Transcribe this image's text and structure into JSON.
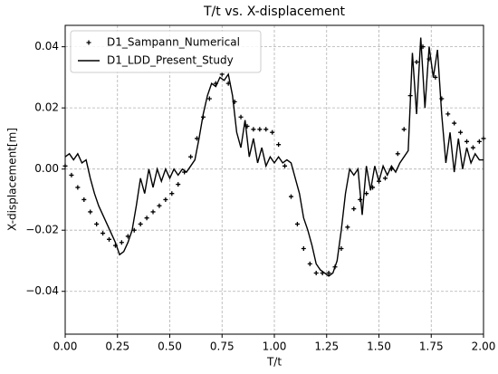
{
  "chart_data": {
    "type": "line",
    "title": "T/t vs. X-displacement",
    "x_label": "T/t",
    "y_label": "X-displacement[m]",
    "xlim": [
      0,
      2
    ],
    "ylim": [
      -0.054,
      0.047
    ],
    "xticks": [
      {
        "value": 0,
        "label": "0.00"
      },
      {
        "value": 0.25,
        "label": "0.25"
      },
      {
        "value": 0.5,
        "label": "0.50"
      },
      {
        "value": 0.75,
        "label": "0.75"
      },
      {
        "value": 1,
        "label": "1.00"
      },
      {
        "value": 1.25,
        "label": "1.25"
      },
      {
        "value": 1.5,
        "label": "1.50"
      },
      {
        "value": 1.75,
        "label": "1.75"
      },
      {
        "value": 2,
        "label": "2.00"
      }
    ],
    "yticks": [
      {
        "value": -0.04,
        "label": "−0.04"
      },
      {
        "value": -0.02,
        "label": "−0.02"
      },
      {
        "value": 0,
        "label": "0.00"
      },
      {
        "value": 0.02,
        "label": "0.02"
      },
      {
        "value": 0.04,
        "label": "0.04"
      }
    ],
    "grid": true,
    "legend": "upper left",
    "series": [
      {
        "name": "D1_Sampann_Numerical",
        "color": "#000000",
        "type": "scatter",
        "x": [
          0,
          0.03,
          0.06,
          0.09,
          0.12,
          0.15,
          0.18,
          0.21,
          0.24,
          0.27,
          0.3,
          0.33,
          0.36,
          0.39,
          0.42,
          0.45,
          0.48,
          0.51,
          0.54,
          0.57,
          0.6,
          0.63,
          0.66,
          0.69,
          0.72,
          0.75,
          0.78,
          0.81,
          0.84,
          0.87,
          0.9,
          0.93,
          0.96,
          0.99,
          1.02,
          1.05,
          1.08,
          1.11,
          1.14,
          1.17,
          1.2,
          1.23,
          1.26,
          1.29,
          1.32,
          1.35,
          1.38,
          1.41,
          1.44,
          1.47,
          1.5,
          1.53,
          1.56,
          1.59,
          1.62,
          1.65,
          1.68,
          1.71,
          1.74,
          1.77,
          1.8,
          1.83,
          1.86,
          1.89,
          1.92,
          1.95,
          1.98,
          2.0
        ],
        "values": [
          0.001,
          -0.002,
          -0.006,
          -0.01,
          -0.014,
          -0.018,
          -0.021,
          -0.023,
          -0.025,
          -0.024,
          -0.022,
          -0.02,
          -0.018,
          -0.016,
          -0.014,
          -0.012,
          -0.01,
          -0.008,
          -0.005,
          -0.001,
          0.004,
          0.01,
          0.017,
          0.023,
          0.028,
          0.031,
          0.028,
          0.022,
          0.017,
          0.014,
          0.013,
          0.013,
          0.013,
          0.012,
          0.008,
          0.001,
          -0.009,
          -0.018,
          -0.026,
          -0.031,
          -0.034,
          -0.034,
          -0.034,
          -0.032,
          -0.026,
          -0.019,
          -0.013,
          -0.01,
          -0.008,
          -0.006,
          -0.004,
          -0.003,
          0.0,
          0.005,
          0.013,
          0.024,
          0.035,
          0.04,
          0.036,
          0.03,
          0.023,
          0.018,
          0.015,
          0.012,
          0.009,
          0.007,
          0.009,
          0.01
        ]
      },
      {
        "name": "D1_LDD_Present_Study",
        "color": "#000000",
        "type": "line",
        "x": [
          0,
          0.02,
          0.04,
          0.06,
          0.08,
          0.1,
          0.12,
          0.14,
          0.16,
          0.18,
          0.2,
          0.22,
          0.24,
          0.26,
          0.28,
          0.3,
          0.32,
          0.34,
          0.36,
          0.38,
          0.4,
          0.42,
          0.44,
          0.46,
          0.48,
          0.5,
          0.52,
          0.54,
          0.56,
          0.58,
          0.6,
          0.62,
          0.64,
          0.66,
          0.68,
          0.7,
          0.72,
          0.74,
          0.76,
          0.78,
          0.8,
          0.82,
          0.84,
          0.86,
          0.88,
          0.9,
          0.92,
          0.94,
          0.96,
          0.98,
          1.0,
          1.02,
          1.04,
          1.06,
          1.08,
          1.1,
          1.12,
          1.14,
          1.16,
          1.18,
          1.2,
          1.22,
          1.24,
          1.26,
          1.28,
          1.3,
          1.32,
          1.34,
          1.36,
          1.38,
          1.4,
          1.42,
          1.44,
          1.46,
          1.48,
          1.5,
          1.52,
          1.54,
          1.56,
          1.58,
          1.6,
          1.62,
          1.64,
          1.66,
          1.68,
          1.7,
          1.72,
          1.74,
          1.76,
          1.78,
          1.8,
          1.82,
          1.84,
          1.86,
          1.88,
          1.9,
          1.92,
          1.94,
          1.96,
          1.98,
          2.0
        ],
        "values": [
          0.004,
          0.005,
          0.003,
          0.005,
          0.002,
          0.003,
          -0.003,
          -0.008,
          -0.012,
          -0.015,
          -0.018,
          -0.021,
          -0.024,
          -0.028,
          -0.027,
          -0.024,
          -0.02,
          -0.012,
          -0.003,
          -0.008,
          0.0,
          -0.006,
          0.0,
          -0.004,
          0.0,
          -0.003,
          0.0,
          -0.002,
          0.0,
          -0.001,
          0.001,
          0.003,
          0.01,
          0.018,
          0.024,
          0.028,
          0.027,
          0.03,
          0.029,
          0.031,
          0.024,
          0.012,
          0.007,
          0.016,
          0.004,
          0.01,
          0.002,
          0.007,
          0.001,
          0.004,
          0.002,
          0.004,
          0.002,
          0.003,
          0.002,
          -0.003,
          -0.008,
          -0.016,
          -0.02,
          -0.025,
          -0.031,
          -0.033,
          -0.034,
          -0.035,
          -0.034,
          -0.03,
          -0.02,
          -0.008,
          0.0,
          -0.002,
          0.0,
          -0.015,
          0.001,
          -0.007,
          0.001,
          -0.004,
          0.001,
          -0.002,
          0.001,
          -0.001,
          0.002,
          0.004,
          0.006,
          0.038,
          0.018,
          0.043,
          0.02,
          0.04,
          0.03,
          0.039,
          0.018,
          0.002,
          0.012,
          -0.001,
          0.01,
          0.0,
          0.007,
          0.002,
          0.005,
          0.003,
          0.003
        ]
      }
    ]
  }
}
